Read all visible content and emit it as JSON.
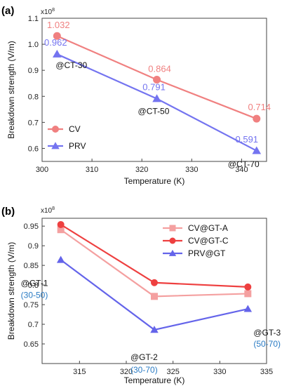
{
  "chart_data": [
    {
      "panel_label": "(a)",
      "type": "line",
      "xlabel": "Temperature (K)",
      "ylabel": "Breakdown strength (V/m)",
      "y_multiplier": "x10",
      "y_multiplier_exp": "8",
      "xlim": [
        300,
        345
      ],
      "ylim": [
        0.55,
        1.1
      ],
      "xticks": [
        "300",
        "310",
        "320",
        "330",
        "340"
      ],
      "yticks": [
        "0.6",
        "0.7",
        "0.8",
        "0.9",
        "1.0",
        "1.1"
      ],
      "legend_position": "lower-left",
      "series": [
        {
          "name": "CV",
          "color": "#f08080",
          "marker": "circle",
          "x": [
            303,
            323,
            343
          ],
          "y": [
            1.032,
            0.864,
            0.714
          ],
          "labels": [
            "1.032",
            "0.864",
            "0.714"
          ]
        },
        {
          "name": "PRV",
          "color": "#7474f0",
          "marker": "triangle",
          "x": [
            303,
            323,
            343
          ],
          "y": [
            0.962,
            0.791,
            0.591
          ],
          "labels": [
            "0.962",
            "0.791",
            "0.591"
          ]
        }
      ],
      "annotations": [
        {
          "text": "@CT-30",
          "x": 303,
          "y": 0.962
        },
        {
          "text": "@CT-50",
          "x": 323,
          "y": 0.791
        },
        {
          "text": "@CT-70",
          "x": 343,
          "y": 0.591
        }
      ]
    },
    {
      "panel_label": "(b)",
      "type": "line",
      "xlabel": "Temperature (K)",
      "ylabel": "Breakdown strength (V/m)",
      "y_multiplier": "x10",
      "y_multiplier_exp": "8",
      "xlim": [
        311,
        335
      ],
      "ylim": [
        0.6,
        0.97
      ],
      "xticks": [
        "315",
        "320",
        "325",
        "330",
        "335"
      ],
      "yticks": [
        "0.65",
        "0.7",
        "0.75",
        "0.8",
        "0.85",
        "0.9",
        "0.95"
      ],
      "legend_position": "top-right",
      "series": [
        {
          "name": "CV@GT-A",
          "color": "#f4a0a0",
          "marker": "square",
          "x": [
            313,
            323,
            333
          ],
          "y": [
            0.941,
            0.771,
            0.778
          ]
        },
        {
          "name": "CV@GT-C",
          "color": "#ee4040",
          "marker": "circle",
          "x": [
            313,
            323,
            333
          ],
          "y": [
            0.954,
            0.806,
            0.795
          ]
        },
        {
          "name": "PRV@GT",
          "color": "#6464ea",
          "marker": "triangle",
          "x": [
            313,
            323,
            333
          ],
          "y": [
            0.864,
            0.686,
            0.739
          ]
        }
      ],
      "annotations": [
        {
          "text": "@GT-1",
          "range": "(30-50)",
          "x": 313,
          "y": 0.864
        },
        {
          "text": "@GT-2",
          "range": "(30-70)",
          "x": 323,
          "y": 0.686
        },
        {
          "text": "@GT-3",
          "range": "(50-70)",
          "x": 333,
          "y": 0.739
        }
      ]
    }
  ]
}
